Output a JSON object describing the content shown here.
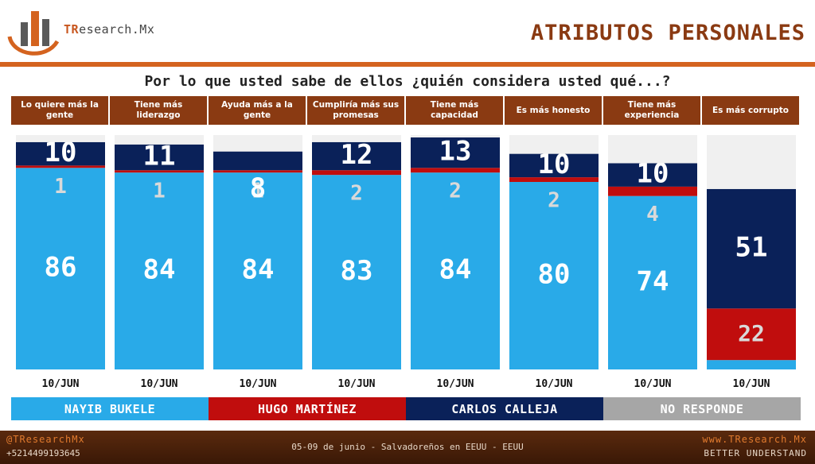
{
  "brand": {
    "logo_prefix": "TR",
    "logo_suffix": "esearch.Mx"
  },
  "page_title": "ATRIBUTOS PERSONALES",
  "question": "Por lo que usted sabe de ellos ¿quién considera usted qué...?",
  "footer": {
    "handle": "@TResearchMx",
    "phone": "+5214499193645",
    "center_text": "05-09 de junio  - Salvadoreños en EEUU - EEUU",
    "website": "www.TResearch.Mx",
    "tagline": "BETTER UNDERSTAND"
  },
  "colors": {
    "bukele": "#29aae8",
    "martinez": "#c00d0d",
    "calleja": "#0a2159",
    "no_responde": "#a6a6a6",
    "header_bg": "#8a3a12",
    "accent": "#d4631f"
  },
  "chart_data": {
    "type": "bar",
    "stacked": true,
    "ylim": [
      0,
      100
    ],
    "categories": [
      "Lo quiere más la gente",
      "Tiene más liderazgo",
      "Ayuda más a la gente",
      "Cumpliría más sus promesas",
      "Tiene más capacidad",
      "Es más honesto",
      "Tiene más experiencia",
      "Es más corrupto"
    ],
    "date_labels": [
      "10/JUN",
      "10/JUN",
      "10/JUN",
      "10/JUN",
      "10/JUN",
      "10/JUN",
      "10/JUN",
      "10/JUN"
    ],
    "series": [
      {
        "name": "NAYIB BUKELE",
        "color": "#29aae8",
        "values": [
          86,
          84,
          84,
          83,
          84,
          80,
          74,
          4
        ]
      },
      {
        "name": "HUGO MARTÍNEZ",
        "color": "#c00d0d",
        "values": [
          1,
          1,
          1,
          2,
          2,
          2,
          4,
          22
        ]
      },
      {
        "name": "CARLOS CALLEJA",
        "color": "#0a2159",
        "values": [
          10,
          11,
          8,
          12,
          13,
          10,
          10,
          51
        ]
      },
      {
        "name": "NO RESPONDE",
        "color": "#a6a6a6",
        "values": [
          3,
          4,
          7,
          3,
          1,
          8,
          12,
          23
        ]
      }
    ]
  }
}
